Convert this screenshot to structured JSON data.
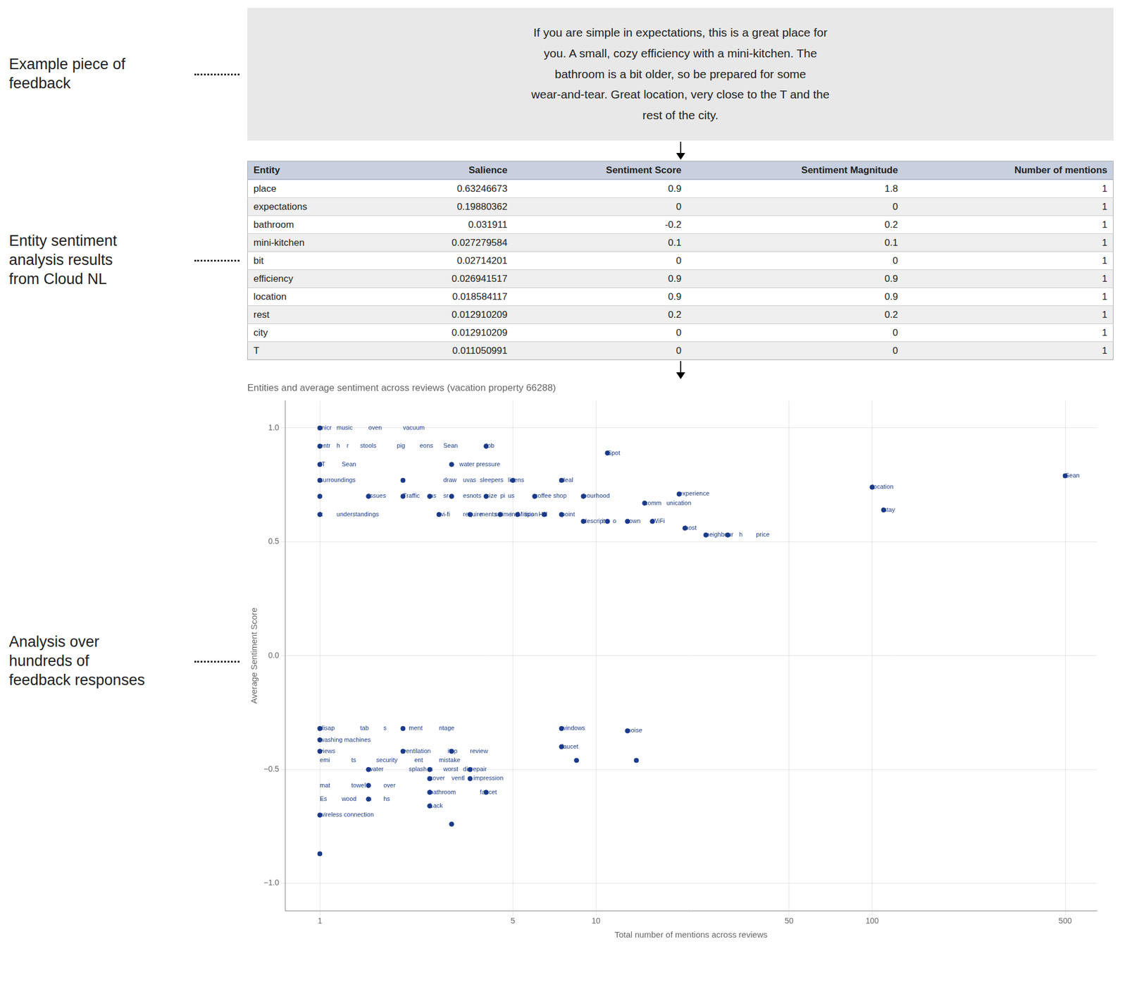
{
  "chart_data": [
    {
      "type": "text",
      "subtitle": "Example piece of\nfeedback",
      "annotations": [
        "If you are simple in expectations, this is a great place for",
        "you. A small, cozy efficiency with a mini-kitchen. The",
        "bathroom is a bit older, so be prepared for some",
        "wear-and-tear. Great location, very close to the T and the",
        "rest of the city."
      ]
    },
    {
      "type": "table",
      "subtitle": "Entity sentiment\nanalysis results\nfrom Cloud NL",
      "columns": [
        "Entity",
        "Salience",
        "Sentiment Score",
        "Sentiment Magnitude",
        "Number of mentions"
      ],
      "rows": [
        [
          "place",
          "0.63246673",
          "0.9",
          "1.8",
          "1"
        ],
        [
          "expectations",
          "0.19880362",
          "0",
          "0",
          "1"
        ],
        [
          "bathroom",
          "0.031911",
          "-0.2",
          "0.2",
          "1"
        ],
        [
          "mini-kitchen",
          "0.027279584",
          "0.1",
          "0.1",
          "1"
        ],
        [
          "bit",
          "0.02714201",
          "0",
          "0",
          "1"
        ],
        [
          "efficiency",
          "0.026941517",
          "0.9",
          "0.9",
          "1"
        ],
        [
          "location",
          "0.018584117",
          "0.9",
          "0.9",
          "1"
        ],
        [
          "rest",
          "0.012910209",
          "0.2",
          "0.2",
          "1"
        ],
        [
          "city",
          "0.012910209",
          "0",
          "0",
          "1"
        ],
        [
          "T",
          "0.011050991",
          "0",
          "0",
          "1"
        ]
      ]
    },
    {
      "type": "scatter",
      "subtitle": "Analysis over\nhundreds of\nfeedback responses",
      "title": "Entities and average sentiment across reviews (vacation property 66288)",
      "x_label": "Total number of mentions across reviews",
      "y_label": "Average Sentiment Score",
      "log": "x",
      "grid": true,
      "color": "#1a3a8a",
      "xlim": [
        0.75,
        650
      ],
      "xticks": [
        1,
        5,
        10,
        50,
        100,
        500
      ],
      "ylim": [
        -1.12,
        1.12
      ],
      "yticks": [
        {
          "value": -1,
          "label": "−1.0"
        },
        {
          "value": -0.5,
          "label": "−0.5"
        },
        {
          "value": 0,
          "label": "0.0"
        },
        0.5,
        {
          "value": 1,
          "label": "1.0"
        }
      ],
      "x": [
        1.0,
        1.0,
        1.0,
        1.0,
        1.0,
        1.0,
        2.0,
        3.0,
        4.0,
        5.0,
        7.5,
        11.0,
        1.5,
        2.0,
        2.5,
        3.0,
        4.0,
        6.0,
        9.0,
        15.0,
        20.0,
        2.7,
        3.5,
        4.5,
        5.2,
        6.5,
        7.5,
        9.0,
        11.0,
        13.0,
        16.0,
        21.0,
        25.0,
        30.0,
        100.0,
        110.0,
        500.0,
        1.0,
        2.0,
        7.5,
        13.0,
        1.0,
        1.0,
        2.0,
        3.0,
        7.5,
        8.5,
        1.5,
        2.5,
        3.5,
        2.5,
        3.5,
        1.5,
        2.5,
        4.0,
        1.5,
        2.5,
        1.0,
        3.0,
        1.0,
        14.0
      ],
      "values": [
        1.0,
        0.92,
        0.84,
        0.77,
        0.7,
        0.62,
        0.77,
        0.84,
        0.92,
        0.77,
        0.77,
        0.89,
        0.7,
        0.7,
        0.7,
        0.7,
        0.7,
        0.7,
        0.7,
        0.67,
        0.71,
        0.62,
        0.62,
        0.62,
        0.62,
        0.62,
        0.62,
        0.59,
        0.59,
        0.59,
        0.59,
        0.56,
        0.53,
        0.53,
        0.74,
        0.64,
        0.79,
        -0.32,
        -0.32,
        -0.32,
        -0.33,
        -0.37,
        -0.42,
        -0.42,
        -0.42,
        -0.4,
        -0.46,
        -0.5,
        -0.5,
        -0.5,
        -0.54,
        -0.54,
        -0.57,
        -0.6,
        -0.6,
        -0.63,
        -0.66,
        -0.7,
        -0.74,
        -0.87,
        -0.46
      ],
      "annotations": [
        {
          "x": 1.0,
          "y": 1.0,
          "text": "micr"
        },
        {
          "x": 1.15,
          "y": 1.0,
          "text": "music"
        },
        {
          "x": 1.5,
          "y": 1.0,
          "text": "oven"
        },
        {
          "x": 2.0,
          "y": 1.0,
          "text": "vacuum"
        },
        {
          "x": 1.0,
          "y": 0.92,
          "text": "entr"
        },
        {
          "x": 1.15,
          "y": 0.92,
          "text": "h"
        },
        {
          "x": 1.25,
          "y": 0.92,
          "text": "r"
        },
        {
          "x": 1.4,
          "y": 0.92,
          "text": "stools"
        },
        {
          "x": 1.9,
          "y": 0.92,
          "text": "pig"
        },
        {
          "x": 2.3,
          "y": 0.92,
          "text": "eons"
        },
        {
          "x": 2.8,
          "y": 0.92,
          "text": "Sean"
        },
        {
          "x": 4.0,
          "y": 0.92,
          "text": "job"
        },
        {
          "x": 1.0,
          "y": 0.84,
          "text": "IT"
        },
        {
          "x": 1.2,
          "y": 0.84,
          "text": "Sean"
        },
        {
          "x": 3.2,
          "y": 0.84,
          "text": "water pressure"
        },
        {
          "x": 1.0,
          "y": 0.77,
          "text": "surroundings"
        },
        {
          "x": 2.8,
          "y": 0.77,
          "text": "draw"
        },
        {
          "x": 3.3,
          "y": 0.77,
          "text": "uvas"
        },
        {
          "x": 3.8,
          "y": 0.77,
          "text": "sleepers"
        },
        {
          "x": 4.8,
          "y": 0.77,
          "text": "linens"
        },
        {
          "x": 7.5,
          "y": 0.77,
          "text": "deal"
        },
        {
          "x": 11.0,
          "y": 0.89,
          "text": "Spot"
        },
        {
          "x": 1.5,
          "y": 0.7,
          "text": "issues"
        },
        {
          "x": 2.0,
          "y": 0.7,
          "text": "Traffic"
        },
        {
          "x": 2.5,
          "y": 0.7,
          "text": "ns"
        },
        {
          "x": 2.8,
          "y": 0.7,
          "text": "sr"
        },
        {
          "x": 3.3,
          "y": 0.7,
          "text": "esnots"
        },
        {
          "x": 4.0,
          "y": 0.7,
          "text": "size"
        },
        {
          "x": 4.5,
          "y": 0.7,
          "text": "pi"
        },
        {
          "x": 4.8,
          "y": 0.7,
          "text": "us"
        },
        {
          "x": 6.0,
          "y": 0.7,
          "text": "coffee shop"
        },
        {
          "x": 9.0,
          "y": 0.7,
          "text": "bour"
        },
        {
          "x": 10.0,
          "y": 0.7,
          "text": "hood"
        },
        {
          "x": 15.0,
          "y": 0.67,
          "text": "comm"
        },
        {
          "x": 18.0,
          "y": 0.67,
          "text": "unication"
        },
        {
          "x": 20.0,
          "y": 0.71,
          "text": "experience"
        },
        {
          "x": 1.0,
          "y": 0.62,
          "text": "k"
        },
        {
          "x": 1.15,
          "y": 0.62,
          "text": "understandings"
        },
        {
          "x": 2.7,
          "y": 0.62,
          "text": "wi-fi"
        },
        {
          "x": 3.3,
          "y": 0.62,
          "text": "require"
        },
        {
          "x": 3.8,
          "y": 0.62,
          "text": "ments"
        },
        {
          "x": 4.3,
          "y": 0.62,
          "text": "s"
        },
        {
          "x": 4.5,
          "y": 0.62,
          "text": "time"
        },
        {
          "x": 4.9,
          "y": 0.62,
          "text": "in"
        },
        {
          "x": 5.2,
          "y": 0.62,
          "text": "Mis"
        },
        {
          "x": 5.6,
          "y": 0.62,
          "text": "sion"
        },
        {
          "x": 6.2,
          "y": 0.62,
          "text": "Hill"
        },
        {
          "x": 7.5,
          "y": 0.62,
          "text": "point"
        },
        {
          "x": 9.0,
          "y": 0.59,
          "text": "descript"
        },
        {
          "x": 10.5,
          "y": 0.59,
          "text": "int"
        },
        {
          "x": 11.5,
          "y": 0.59,
          "text": "o"
        },
        {
          "x": 13.0,
          "y": 0.59,
          "text": "town"
        },
        {
          "x": 16.0,
          "y": 0.59,
          "text": "WiFi"
        },
        {
          "x": 5.5,
          "y": 0.62,
          "text": "tips"
        },
        {
          "x": 21.0,
          "y": 0.56,
          "text": "host"
        },
        {
          "x": 25.0,
          "y": 0.53,
          "text": "neighbour"
        },
        {
          "x": 33.0,
          "y": 0.53,
          "text": "h"
        },
        {
          "x": 38.0,
          "y": 0.53,
          "text": "price"
        },
        {
          "x": 100.0,
          "y": 0.74,
          "text": "location"
        },
        {
          "x": 110.0,
          "y": 0.64,
          "text": "stay"
        },
        {
          "x": 500.0,
          "y": 0.79,
          "text": "Sean"
        },
        {
          "x": 1.0,
          "y": -0.32,
          "text": "disap"
        },
        {
          "x": 1.4,
          "y": -0.32,
          "text": "tab"
        },
        {
          "x": 1.7,
          "y": -0.32,
          "text": "s"
        },
        {
          "x": 2.1,
          "y": -0.32,
          "text": "ment"
        },
        {
          "x": 2.7,
          "y": -0.32,
          "text": "ntage"
        },
        {
          "x": 7.5,
          "y": -0.32,
          "text": "windows"
        },
        {
          "x": 13.0,
          "y": -0.33,
          "text": "noise"
        },
        {
          "x": 1.0,
          "y": -0.37,
          "text": "washing machines"
        },
        {
          "x": 1.0,
          "y": -0.42,
          "text": "views"
        },
        {
          "x": 2.0,
          "y": -0.42,
          "text": "ventilation"
        },
        {
          "x": 2.9,
          "y": -0.42,
          "text": "itop"
        },
        {
          "x": 3.5,
          "y": -0.42,
          "text": "review"
        },
        {
          "x": 7.5,
          "y": -0.4,
          "text": "faucet"
        },
        {
          "x": 1.0,
          "y": -0.46,
          "text": "emi"
        },
        {
          "x": 1.3,
          "y": -0.46,
          "text": "ts"
        },
        {
          "x": 1.6,
          "y": -0.46,
          "text": "security"
        },
        {
          "x": 2.2,
          "y": -0.46,
          "text": "ent"
        },
        {
          "x": 2.7,
          "y": -0.46,
          "text": "mistake"
        },
        {
          "x": 1.5,
          "y": -0.5,
          "text": "water"
        },
        {
          "x": 2.1,
          "y": -0.5,
          "text": "splash"
        },
        {
          "x": 2.5,
          "y": -0.5,
          "text": "s"
        },
        {
          "x": 2.8,
          "y": -0.5,
          "text": "worst"
        },
        {
          "x": 3.3,
          "y": -0.5,
          "text": "disrepair"
        },
        {
          "x": 2.5,
          "y": -0.54,
          "text": "cover"
        },
        {
          "x": 3.0,
          "y": -0.54,
          "text": "ventl"
        },
        {
          "x": 3.6,
          "y": -0.54,
          "text": "impression"
        },
        {
          "x": 1.0,
          "y": -0.57,
          "text": "mat"
        },
        {
          "x": 1.3,
          "y": -0.57,
          "text": "towel"
        },
        {
          "x": 1.7,
          "y": -0.57,
          "text": "over"
        },
        {
          "x": 2.5,
          "y": -0.6,
          "text": "bathroom"
        },
        {
          "x": 3.8,
          "y": -0.6,
          "text": "faucet"
        },
        {
          "x": 1.0,
          "y": -0.63,
          "text": "Es"
        },
        {
          "x": 1.2,
          "y": -0.63,
          "text": "wood"
        },
        {
          "x": 1.5,
          "y": -0.63,
          "text": "s"
        },
        {
          "x": 1.7,
          "y": -0.63,
          "text": "hs"
        },
        {
          "x": 2.5,
          "y": -0.66,
          "text": "Lack"
        },
        {
          "x": 1.0,
          "y": -0.7,
          "text": "wireless connection"
        }
      ]
    }
  ]
}
